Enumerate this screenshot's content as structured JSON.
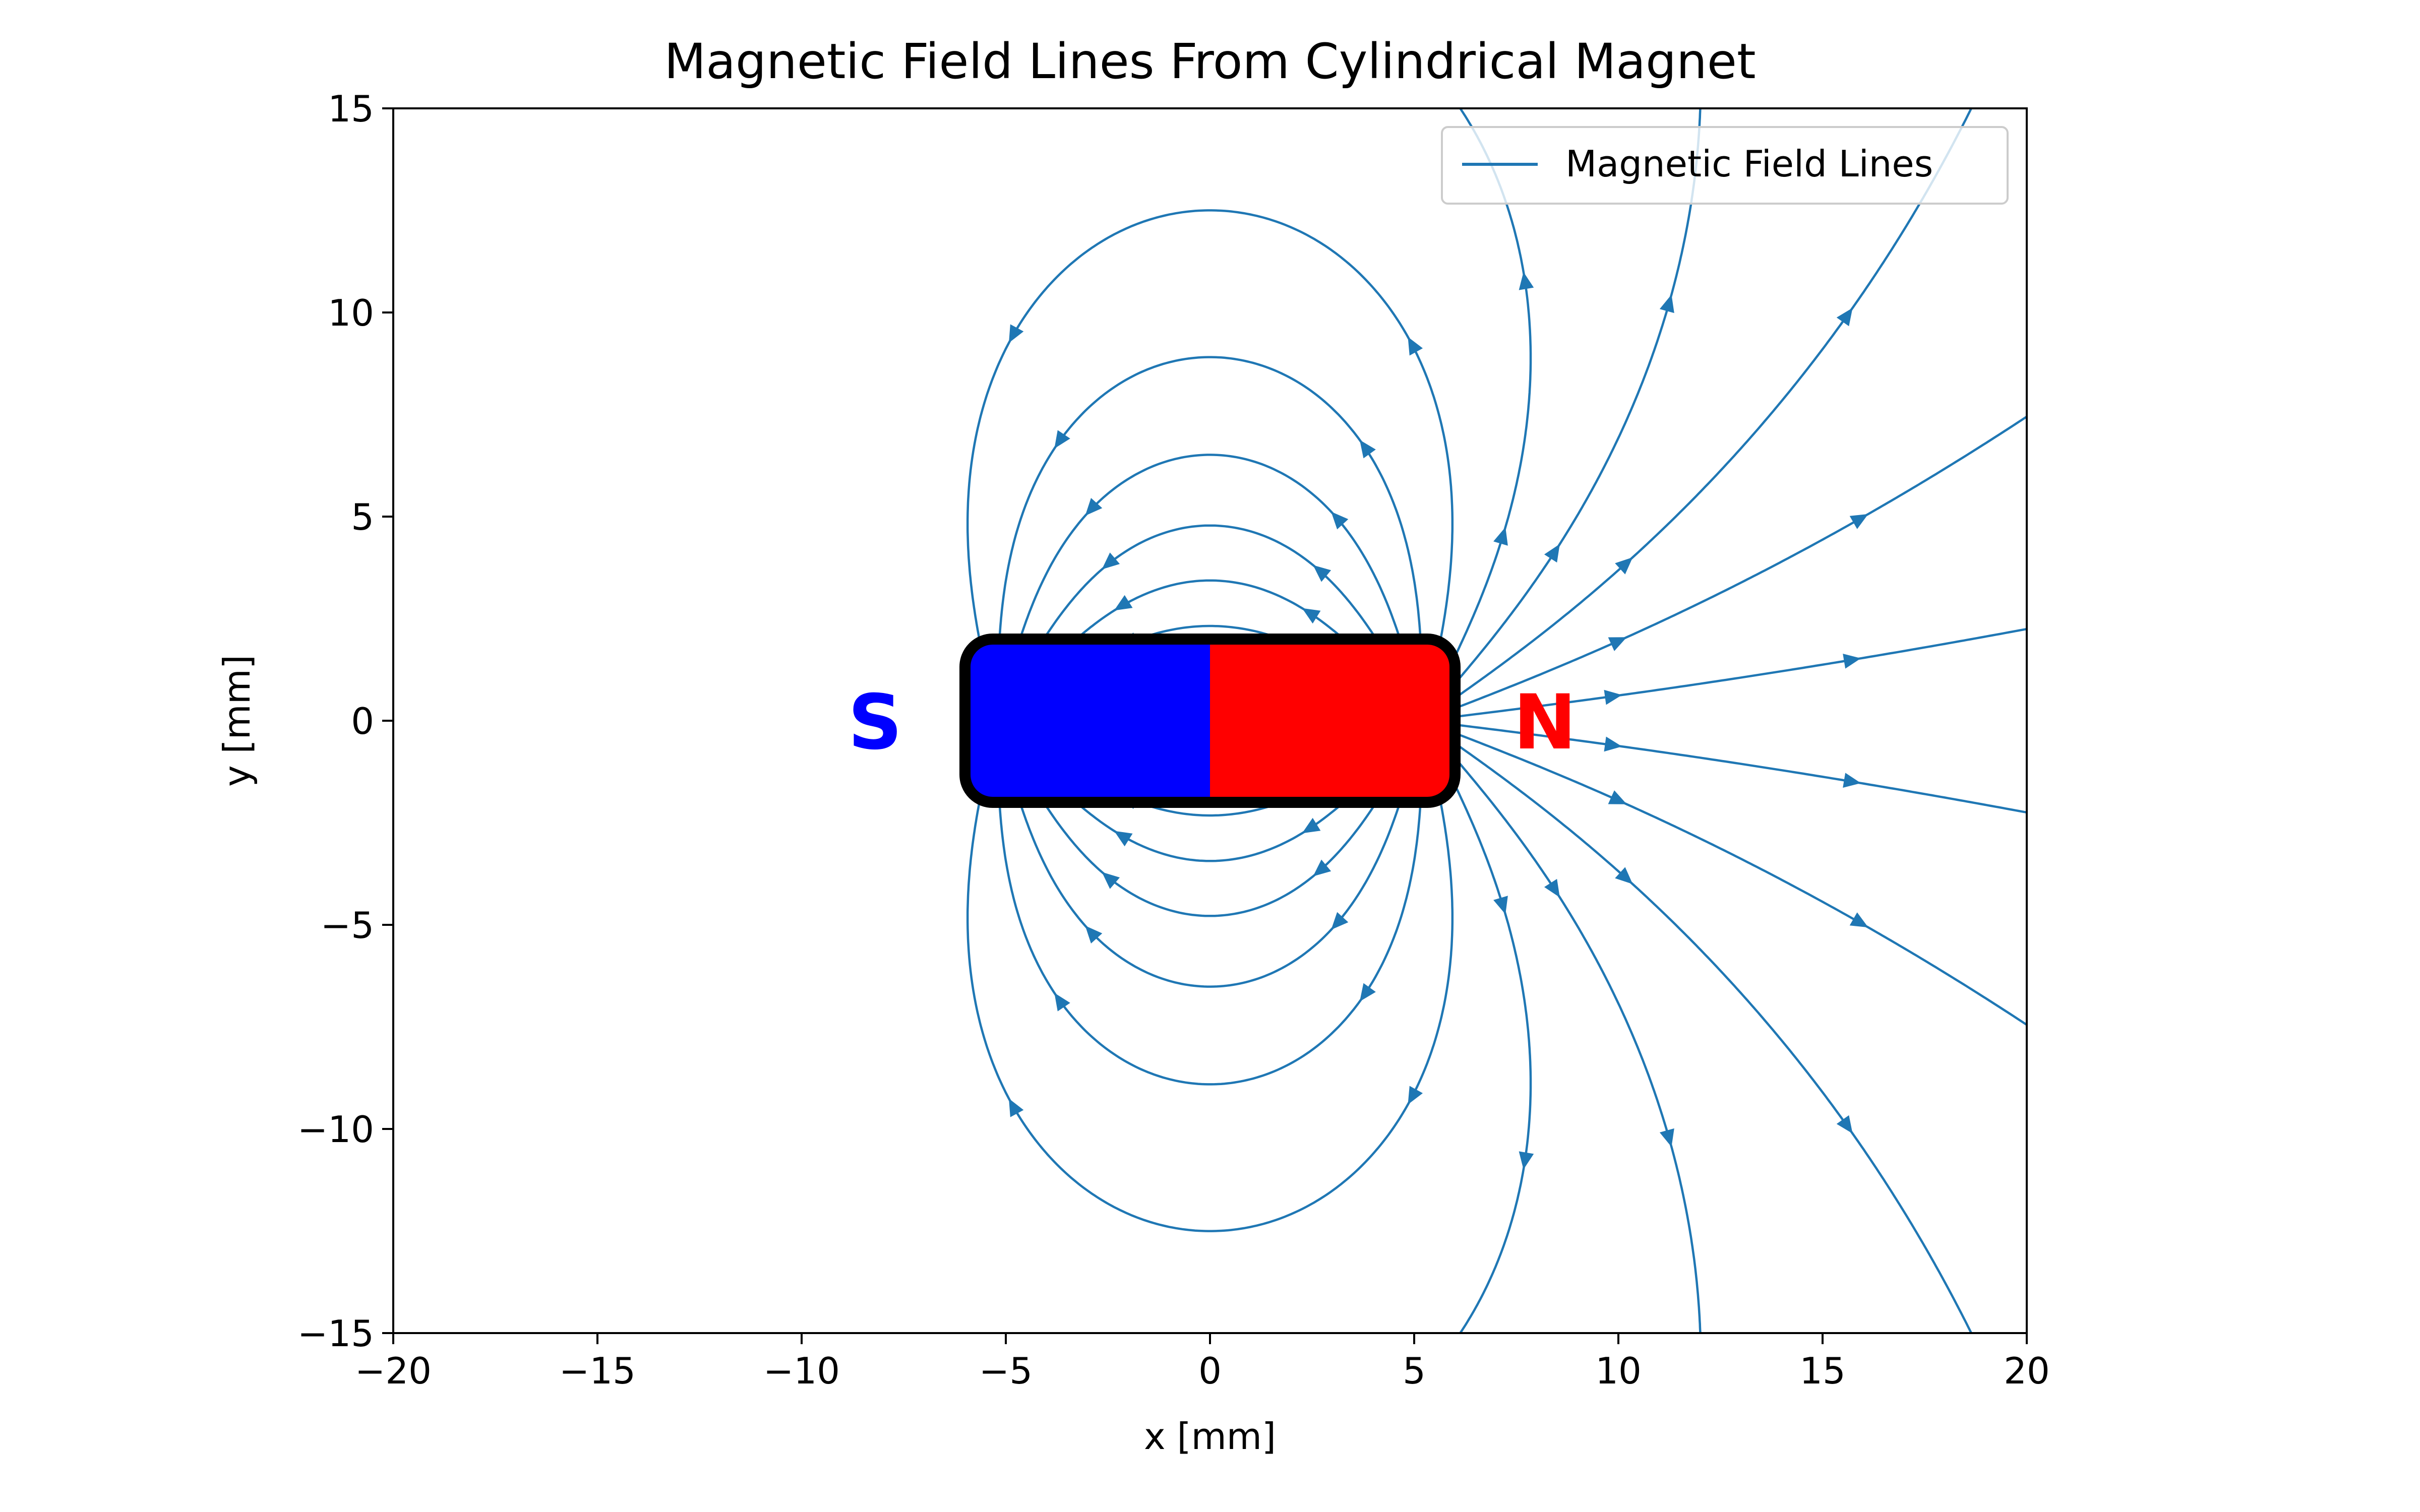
{
  "chart_data": {
    "type": "streamplot",
    "title": "Magnetic Field Lines From Cylindrical Magnet",
    "xlabel": "x [mm]",
    "ylabel": "y [mm]",
    "xlim": [
      -20,
      20
    ],
    "ylim": [
      -15,
      15
    ],
    "xticks": [
      -20,
      -15,
      -10,
      -5,
      0,
      5,
      10,
      15,
      20
    ],
    "xtick_labels": [
      "−20",
      "−15",
      "−10",
      "−5",
      "0",
      "5",
      "10",
      "15",
      "20"
    ],
    "yticks": [
      -15,
      -10,
      -5,
      0,
      5,
      10,
      15
    ],
    "ytick_labels": [
      "−15",
      "−10",
      "−5",
      "0",
      "5",
      "10",
      "15"
    ],
    "legend": {
      "location": "top-right",
      "entries": [
        {
          "label": "Magnetic Field Lines",
          "color": "#1f77b4"
        }
      ]
    },
    "series": [
      {
        "name": "Magnetic Field Lines",
        "color": "#1f77b4"
      }
    ],
    "magnet": {
      "x_range": [
        -6,
        6
      ],
      "y_range": [
        -2,
        2
      ],
      "south_color": "#0000ff",
      "north_color": "#ff0000",
      "outline_color": "#000000"
    },
    "annotations": [
      {
        "text": "S",
        "x": -8.2,
        "y": 0,
        "color": "#0000ff"
      },
      {
        "text": "N",
        "x": 8.2,
        "y": 0,
        "color": "#ff0000"
      }
    ],
    "grid": false
  }
}
